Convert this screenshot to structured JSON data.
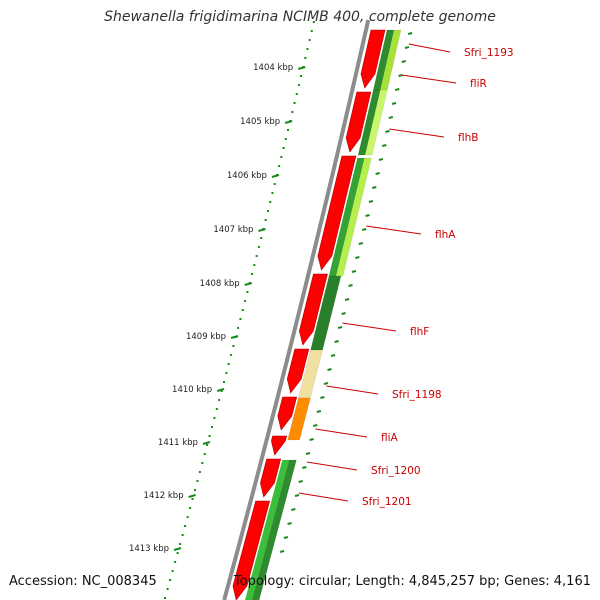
{
  "header": {
    "title": "Shewanella frigidimarina NCIMB 400, complete genome"
  },
  "footer": {
    "accession": "Accession: NC_008345",
    "summary": "Topology: circular; Length: 4,845,257 bp; Genes: 4,161"
  },
  "colors": {
    "backbone": "#8c8c8c",
    "ticks": "#1a8a1a",
    "strand_forward": "#ff0000",
    "gene_label": "#cc0000"
  },
  "ruler": {
    "unit": "kbp",
    "labels": [
      "1404 kbp",
      "1405 kbp",
      "1406 kbp",
      "1407 kbp",
      "1408 kbp",
      "1409 kbp",
      "1410 kbp",
      "1411 kbp",
      "1412 kbp",
      "1413 kbp"
    ]
  },
  "gene_labels": [
    {
      "name": "Sfri_1193"
    },
    {
      "name": "fliR"
    },
    {
      "name": "flhB"
    },
    {
      "name": "flhA"
    },
    {
      "name": "flhF"
    },
    {
      "name": "Sfri_1198"
    },
    {
      "name": "fliA"
    },
    {
      "name": "Sfri_1200"
    },
    {
      "name": "Sfri_1201"
    }
  ]
}
